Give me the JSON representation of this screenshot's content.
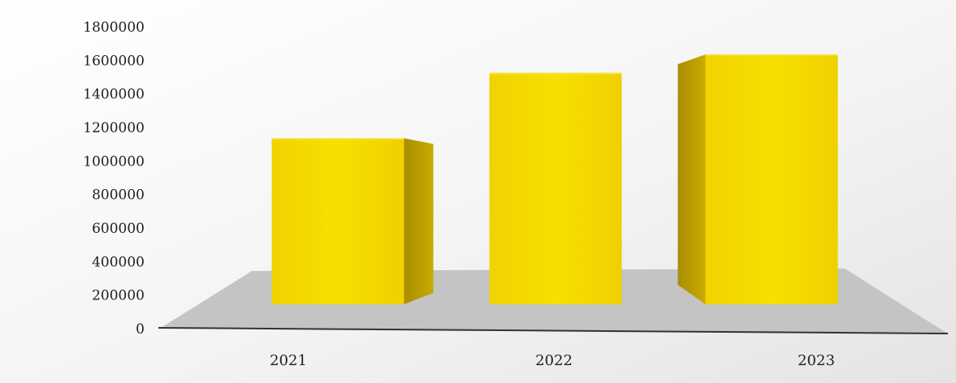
{
  "chart_data": {
    "type": "bar",
    "style": "3d-column",
    "categories": [
      "2021",
      "2022",
      "2023"
    ],
    "values": [
      990000,
      1380000,
      1490000
    ],
    "ylim": [
      0,
      1800000
    ],
    "yticks": [
      0,
      200000,
      400000,
      600000,
      800000,
      1000000,
      1200000,
      1400000,
      1600000,
      1800000
    ],
    "grid": false,
    "legend": "none",
    "colors": {
      "bar_front": "#f5dc00",
      "bar_side": "#b69a00",
      "bar_top": "#f7e030",
      "floor": "#c4c4c4",
      "axis": "#333333"
    }
  }
}
